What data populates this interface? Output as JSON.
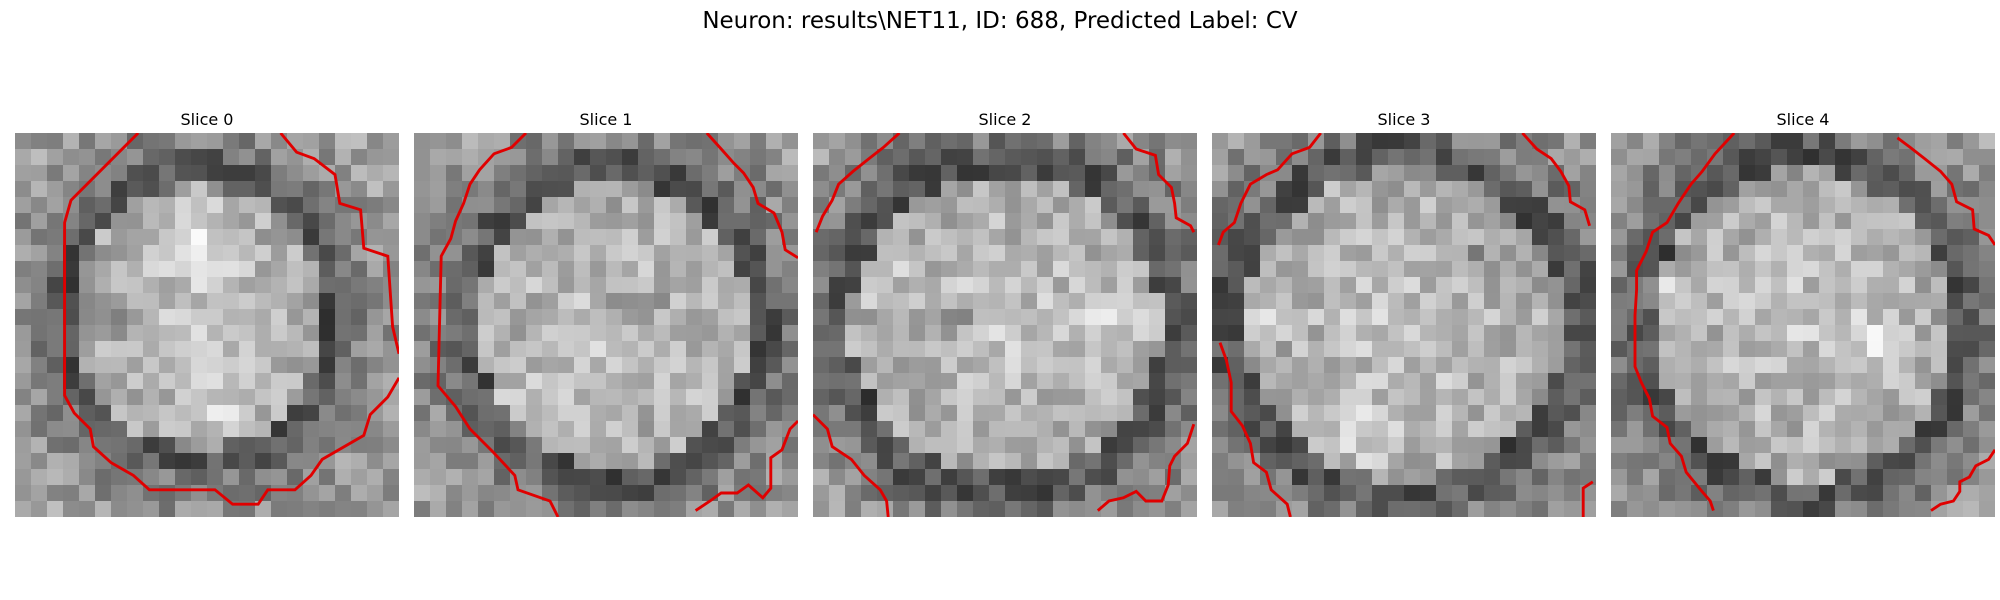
{
  "figure": {
    "title": "Neuron: results\\NET11, ID: 688, Predicted Label: CV"
  },
  "panels": [
    {
      "title": "Slice 0"
    },
    {
      "title": "Slice 1"
    },
    {
      "title": "Slice 2"
    },
    {
      "title": "Slice 3"
    },
    {
      "title": "Slice 4"
    }
  ],
  "colors": {
    "contour": "#e00000"
  }
}
